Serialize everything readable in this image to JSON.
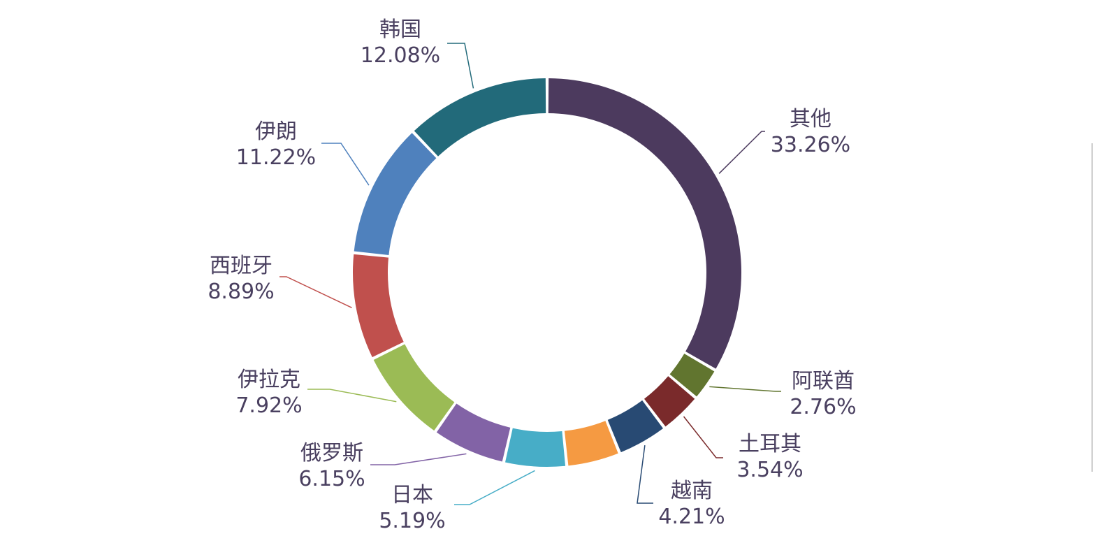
{
  "chart_data": {
    "type": "pie",
    "variant": "donut",
    "title": "",
    "slices": [
      {
        "name": "其他",
        "value": 33.26,
        "label": "33.26%",
        "color": "#4c3a5e"
      },
      {
        "name": "阿联酋",
        "value": 2.76,
        "label": "2.76%",
        "color": "#61752f"
      },
      {
        "name": "土耳其",
        "value": 3.54,
        "label": "3.54%",
        "color": "#7a2a2b"
      },
      {
        "name": "越南",
        "value": 4.21,
        "label": "4.21%",
        "color": "#284a73"
      },
      {
        "name": "",
        "value": 4.45,
        "label": "",
        "color": "#f59a42"
      },
      {
        "name": "日本",
        "value": 5.19,
        "label": "5.19%",
        "color": "#47adc7"
      },
      {
        "name": "俄罗斯",
        "value": 6.15,
        "label": "6.15%",
        "color": "#8263a6"
      },
      {
        "name": "伊拉克",
        "value": 7.92,
        "label": "7.92%",
        "color": "#9bbb55"
      },
      {
        "name": "西班牙",
        "value": 8.89,
        "label": "8.89%",
        "color": "#c0504d"
      },
      {
        "name": "伊朗",
        "value": 11.22,
        "label": "11.22%",
        "color": "#4f81bd"
      },
      {
        "name": "韩国",
        "value": 12.08,
        "label": "12.08%",
        "color": "#226a7a"
      }
    ],
    "start": "top",
    "direction": "clockwise",
    "legend": "none"
  }
}
